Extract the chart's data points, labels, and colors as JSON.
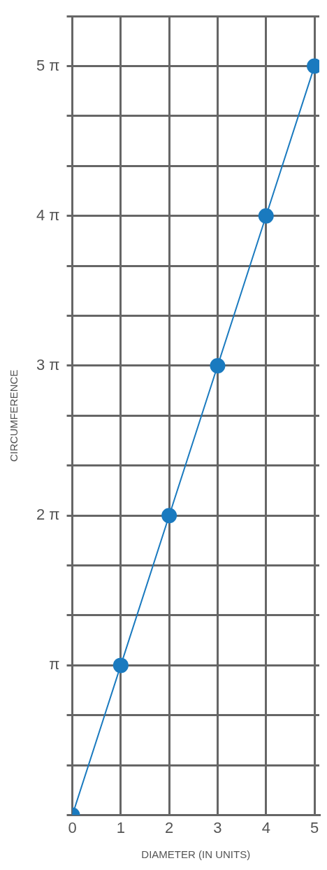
{
  "chart_data": {
    "type": "line",
    "xlabel": "DIAMETER (IN UNITS)",
    "ylabel": "CIRCUMFERENCE",
    "x": [
      0,
      1,
      2,
      3,
      4,
      5
    ],
    "series": [
      {
        "color": "#1a7abf",
        "values": [
          0,
          3.1416,
          6.2832,
          9.4248,
          12.5664,
          15.708
        ]
      }
    ],
    "xlim": [
      0,
      5.1
    ],
    "xticks": [
      0,
      1,
      2,
      3,
      4,
      5
    ],
    "ylim": [
      0,
      16.755
    ],
    "yticks": [
      {
        "value": 0,
        "label": null
      },
      {
        "value": 1.0472,
        "label": null
      },
      {
        "value": 2.0944,
        "label": null
      },
      {
        "value": 3.1416,
        "label": "π"
      },
      {
        "value": 4.1888,
        "label": null
      },
      {
        "value": 5.236,
        "label": null
      },
      {
        "value": 6.2832,
        "label": "2 π"
      },
      {
        "value": 7.3304,
        "label": null
      },
      {
        "value": 8.3776,
        "label": null
      },
      {
        "value": 9.4248,
        "label": "3 π"
      },
      {
        "value": 10.472,
        "label": null
      },
      {
        "value": 11.5192,
        "label": null
      },
      {
        "value": 12.5664,
        "label": "4 π"
      },
      {
        "value": 13.6136,
        "label": null
      },
      {
        "value": 14.6608,
        "label": null
      },
      {
        "value": 15.708,
        "label": "5 π"
      },
      {
        "value": 16.755,
        "label": null
      }
    ],
    "grid": true,
    "marker": "circle",
    "line_style": "solid",
    "legend": false
  }
}
